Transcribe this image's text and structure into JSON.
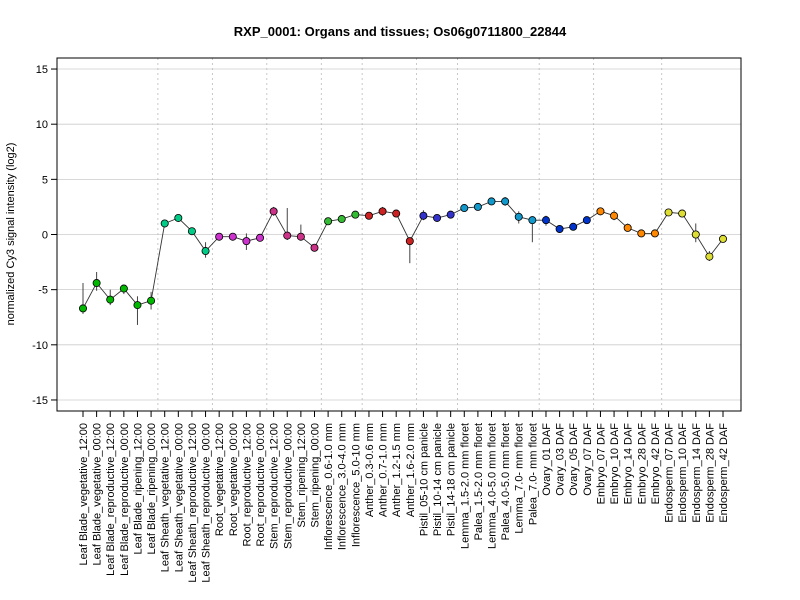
{
  "chart_data": {
    "type": "line",
    "title": "RXP_0001: Organs and tissues; Os06g0711800_22844",
    "xlabel": "",
    "ylabel": "normalized Cy3 signal intensity (log2)",
    "ylim": [
      -16,
      16
    ],
    "yticks": [
      -15,
      -10,
      -5,
      0,
      5,
      10,
      15
    ],
    "grid": true,
    "legend": "none",
    "categories": [
      "Leaf Blade_vegetative_12:00",
      "Leaf Blade_vegetative_00:00",
      "Leaf Blade_reproductive_12:00",
      "Leaf Blade_reproductive_00:00",
      "Leaf Blade_ripening_12:00",
      "Leaf Blade_ripening_00:00",
      "Leaf Sheath_vegetative_12:00",
      "Leaf Sheath_vegetative_00:00",
      "Leaf Sheath_reproductive_12:00",
      "Leaf Sheath_reproductive_00:00",
      "Root_vegetative_12:00",
      "Root_vegetative_00:00",
      "Root_reproductive_12:00",
      "Root_reproductive_00:00",
      "Stem_reproductive_12:00",
      "Stem_reproductive_00:00",
      "Stem_ripening_12:00",
      "Stem_ripening_00:00",
      "Inflorescence_0.6-1.0 mm",
      "Inflorescence_3.0-4.0 mm",
      "Inflorescence_5.0-10 mm",
      "Anther_0.3-0.6 mm",
      "Anther_0.7-1.0 mm",
      "Anther_1.2-1.5 mm",
      "Anther_1.6-2.0 mm",
      "Pistil_05-10 cm panicle",
      "Pistil_10-14 cm panicle",
      "Pistil_14-18 cm panicle",
      "Lemma_1.5-2.0 mm floret",
      "Palea_1.5-2.0 mm floret",
      "Lemma_4.0-5.0 mm floret",
      "Palea_4.0-5.0 mm floret",
      "Lemma_7.0- mm floret",
      "Palea_7.0- mm floret",
      "Ovary_01 DAF",
      "Ovary_03 DAF",
      "Ovary_05 DAF",
      "Ovary_07 DAF",
      "Embryo_07 DAF",
      "Embryo_10 DAF",
      "Embryo_14 DAF",
      "Embryo_28 DAF",
      "Embryo_42 DAF",
      "Endosperm_07 DAF",
      "Endosperm_10 DAF",
      "Endosperm_14 DAF",
      "Endosperm_28 DAF",
      "Endosperm_42 DAF"
    ],
    "series": [
      {
        "values": [
          -6.7,
          -4.4,
          -5.9,
          -4.9,
          -6.4,
          -6.0,
          1.0,
          1.5,
          0.3,
          -1.5,
          -0.2,
          -0.2,
          -0.6,
          -0.3,
          2.1,
          -0.1,
          -0.2,
          -1.2,
          1.2,
          1.4,
          1.8,
          1.7,
          2.1,
          1.9,
          -0.6,
          1.7,
          1.5,
          1.8,
          2.4,
          2.5,
          3.0,
          3.0,
          1.6,
          1.3,
          1.3,
          0.5,
          0.7,
          1.3,
          2.1,
          1.7,
          0.6,
          0.1,
          0.1,
          2.0,
          1.9,
          0.0,
          -2.0,
          -0.4
        ],
        "err_low": [
          -7.2,
          -5.1,
          -6.4,
          -5.4,
          -8.2,
          -6.8,
          0.9,
          1.4,
          0.2,
          -2.1,
          -0.5,
          -0.4,
          -1.4,
          -0.6,
          1.7,
          -0.5,
          -0.5,
          -1.5,
          1.1,
          1.3,
          1.7,
          1.6,
          1.7,
          1.6,
          -2.6,
          1.3,
          1.3,
          1.6,
          2.3,
          2.4,
          2.8,
          2.6,
          1.0,
          -0.7,
          0.8,
          0.3,
          0.5,
          1.2,
          2.0,
          1.3,
          0.3,
          0.0,
          0.0,
          1.9,
          1.8,
          -0.7,
          -2.4,
          -0.6
        ],
        "err_high": [
          -4.4,
          -3.4,
          -5.0,
          -4.6,
          -5.6,
          -5.2,
          1.1,
          1.6,
          0.4,
          -0.7,
          0.1,
          0.0,
          0.1,
          0.0,
          2.5,
          2.4,
          0.9,
          -0.9,
          1.3,
          1.5,
          1.9,
          1.8,
          2.5,
          2.2,
          -0.3,
          2.2,
          1.8,
          2.0,
          2.5,
          2.6,
          3.2,
          3.4,
          2.1,
          1.6,
          1.7,
          0.7,
          0.9,
          1.5,
          2.2,
          2.2,
          1.0,
          0.2,
          0.2,
          2.1,
          2.1,
          1.0,
          -1.5,
          -0.2
        ]
      }
    ],
    "point_colors": [
      "#00b800",
      "#00b800",
      "#00b800",
      "#00b800",
      "#00b800",
      "#00b800",
      "#00cc88",
      "#00cc88",
      "#00cc88",
      "#00cc88",
      "#cc33cc",
      "#cc33cc",
      "#cc33cc",
      "#cc33cc",
      "#cc3388",
      "#cc3388",
      "#cc3388",
      "#cc3388",
      "#33bb33",
      "#33bb33",
      "#33bb33",
      "#cc2222",
      "#cc2222",
      "#cc2222",
      "#cc2222",
      "#3333cc",
      "#3333cc",
      "#3333cc",
      "#1199cc",
      "#1199cc",
      "#1199cc",
      "#1199cc",
      "#1199cc",
      "#1199cc",
      "#0033cc",
      "#0033cc",
      "#0033cc",
      "#0033cc",
      "#ff8800",
      "#ff8800",
      "#ff8800",
      "#ff8800",
      "#ff8800",
      "#dddd33",
      "#dddd33",
      "#dddd33",
      "#dddd33",
      "#dddd33"
    ],
    "group_boundaries_after": [
      5,
      9,
      13,
      17,
      20,
      24,
      27,
      33,
      37,
      42
    ]
  }
}
